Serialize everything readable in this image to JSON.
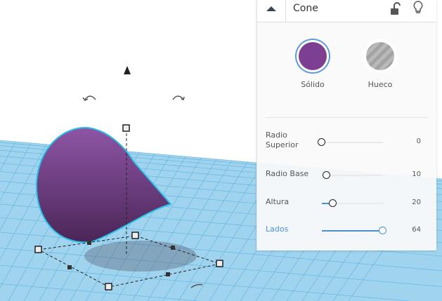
{
  "panel": {
    "title": "Cone",
    "icons": {
      "collapse": "chevron-up-icon",
      "lock": "unlock-icon",
      "bulb": "lightbulb-icon"
    },
    "modes": [
      {
        "label": "Sólido",
        "selected": true,
        "color": "#7d3f92"
      },
      {
        "label": "Hueco",
        "selected": false
      }
    ],
    "params": [
      {
        "label": "Radio Superior",
        "value": "0",
        "fraction": 0.0,
        "active": false
      },
      {
        "label": "Radio Base",
        "value": "10",
        "fraction": 0.08,
        "active": false
      },
      {
        "label": "Altura",
        "value": "20",
        "fraction": 0.18,
        "active": false
      },
      {
        "label": "Lados",
        "value": "64",
        "fraction": 1.0,
        "active": true
      }
    ]
  },
  "colors": {
    "shape": "#7d3f92",
    "selection_outline": "#28c0e8",
    "grid": "#4ea9dc",
    "accent": "#4a8fd6"
  }
}
